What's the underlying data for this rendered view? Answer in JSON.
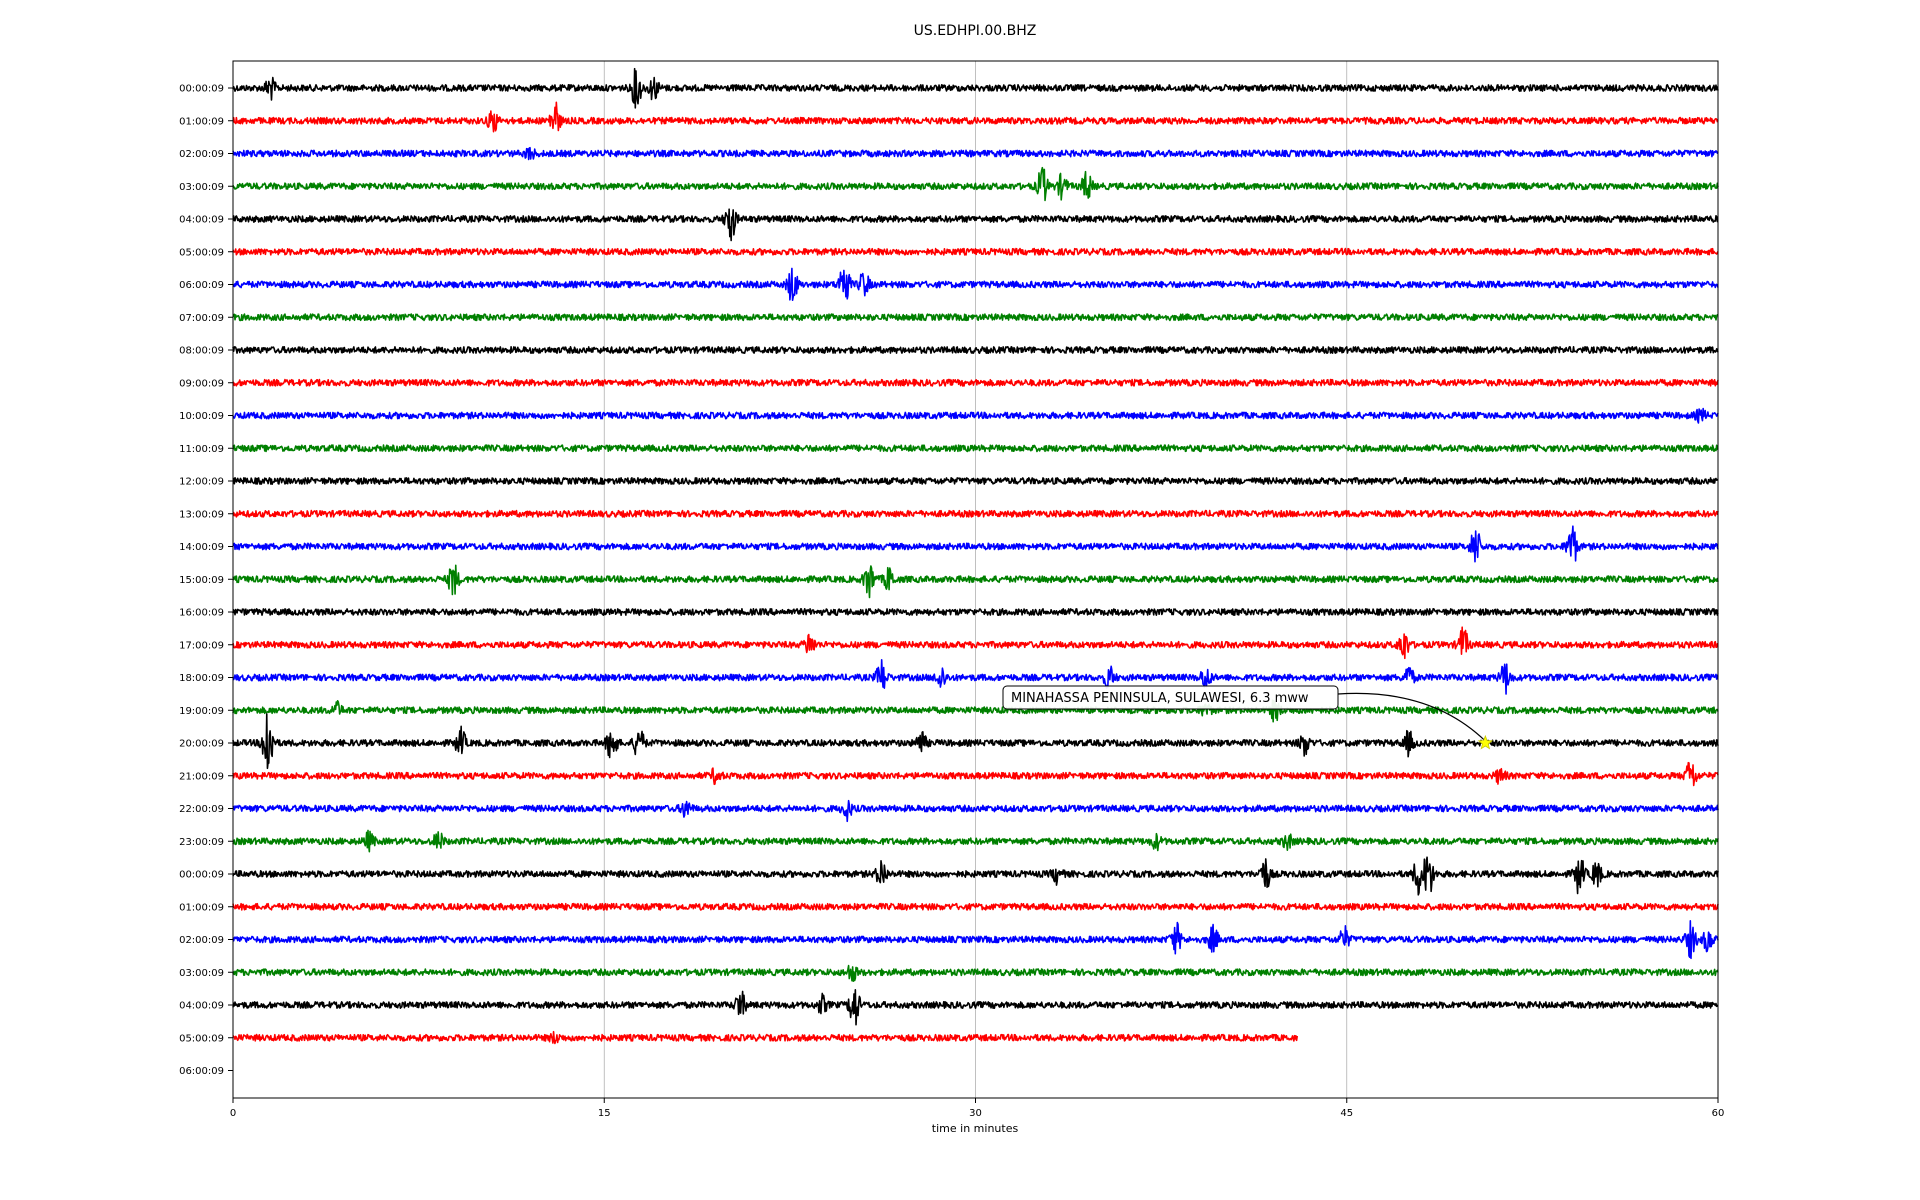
{
  "chart_data": {
    "type": "line",
    "title": "US.EDHPI.00.BHZ",
    "xlabel": "time in minutes",
    "ylabel": "",
    "xlim": [
      0,
      60
    ],
    "x_ticks": [
      0,
      15,
      30,
      45,
      60
    ],
    "grid": "vertical lines at x ticks",
    "row_labels": [
      "00:00:09",
      "01:00:09",
      "02:00:09",
      "03:00:09",
      "04:00:09",
      "05:00:09",
      "06:00:09",
      "07:00:09",
      "08:00:09",
      "09:00:09",
      "10:00:09",
      "11:00:09",
      "12:00:09",
      "13:00:09",
      "14:00:09",
      "15:00:09",
      "16:00:09",
      "17:00:09",
      "18:00:09",
      "19:00:09",
      "20:00:09",
      "21:00:09",
      "22:00:09",
      "23:00:09",
      "00:00:09",
      "01:00:09",
      "02:00:09",
      "03:00:09",
      "04:00:09",
      "05:00:09",
      "06:00:09"
    ],
    "trace_colors": [
      "#000000",
      "#ff0000",
      "#0000ff",
      "#008000"
    ],
    "row_end_minutes": [
      60,
      60,
      60,
      60,
      60,
      60,
      60,
      60,
      60,
      60,
      60,
      60,
      60,
      60,
      60,
      60,
      60,
      60,
      60,
      60,
      60,
      60,
      60,
      60,
      60,
      60,
      60,
      60,
      60,
      43,
      0
    ],
    "bursts": [
      [
        [
          1.5,
          0.8
        ],
        [
          16.3,
          1.4
        ],
        [
          17,
          0.8
        ]
      ],
      [
        [
          10.5,
          0.8
        ],
        [
          13,
          1.3
        ]
      ],
      [
        [
          12,
          0.4
        ]
      ],
      [
        [
          32.7,
          1.3
        ],
        [
          33.5,
          0.8
        ],
        [
          34.5,
          1.0
        ]
      ],
      [
        [
          20.1,
          1.6
        ]
      ],
      [],
      [
        [
          22.6,
          1.3
        ],
        [
          24.7,
          1.8
        ],
        [
          25.5,
          0.9
        ]
      ],
      [],
      [],
      [],
      [
        [
          59.3,
          0.4
        ]
      ],
      [],
      [],
      [],
      [
        [
          50.2,
          1.4
        ],
        [
          54.1,
          1.6
        ]
      ],
      [
        [
          8.9,
          1.2
        ],
        [
          25.7,
          1.3
        ],
        [
          26.5,
          0.8
        ]
      ],
      [],
      [
        [
          23.3,
          0.8
        ],
        [
          47.3,
          1.1
        ],
        [
          49.7,
          1.2
        ]
      ],
      [
        [
          26.2,
          1.2
        ],
        [
          28.6,
          0.8
        ],
        [
          35.4,
          0.8
        ],
        [
          39.3,
          0.8
        ],
        [
          47.5,
          0.8
        ],
        [
          51.4,
          1.1
        ]
      ],
      [
        [
          4.2,
          0.5
        ],
        [
          39.3,
          0.5
        ],
        [
          42.1,
          0.7
        ]
      ],
      [
        [
          1.4,
          3.0
        ],
        [
          9.2,
          1.0
        ],
        [
          15.3,
          1.3
        ],
        [
          16.4,
          1.2
        ],
        [
          27.8,
          0.8
        ],
        [
          43.3,
          0.8
        ],
        [
          47.5,
          0.8
        ]
      ],
      [
        [
          19.5,
          0.5
        ],
        [
          51.2,
          0.5
        ],
        [
          58.9,
          1.2
        ]
      ],
      [
        [
          18.3,
          0.6
        ],
        [
          24.8,
          0.7
        ]
      ],
      [
        [
          5.5,
          0.6
        ],
        [
          8.3,
          0.6
        ],
        [
          37.3,
          0.5
        ],
        [
          42.6,
          0.5
        ]
      ],
      [
        [
          26.2,
          1.0
        ],
        [
          33.3,
          0.6
        ],
        [
          41.7,
          1.2
        ],
        [
          47.9,
          1.4
        ],
        [
          48.3,
          1.6
        ],
        [
          54.4,
          1.4
        ],
        [
          55.1,
          0.9
        ]
      ],
      [],
      [
        [
          38.1,
          1.1
        ],
        [
          39.6,
          0.9
        ],
        [
          44.9,
          0.8
        ],
        [
          58.9,
          1.2
        ],
        [
          59.6,
          0.8
        ]
      ],
      [
        [
          25,
          0.6
        ]
      ],
      [
        [
          20.5,
          1.0
        ],
        [
          23.8,
          0.6
        ],
        [
          25.1,
          1.7
        ]
      ],
      [
        [
          13,
          0.3
        ]
      ],
      []
    ],
    "event_marker": {
      "label": "MINAHASSA PENINSULA, SULAWESI, 6.3 mww",
      "row": 20,
      "x_minutes": 50.6,
      "marker": "star",
      "marker_color": "#ffff00"
    }
  }
}
